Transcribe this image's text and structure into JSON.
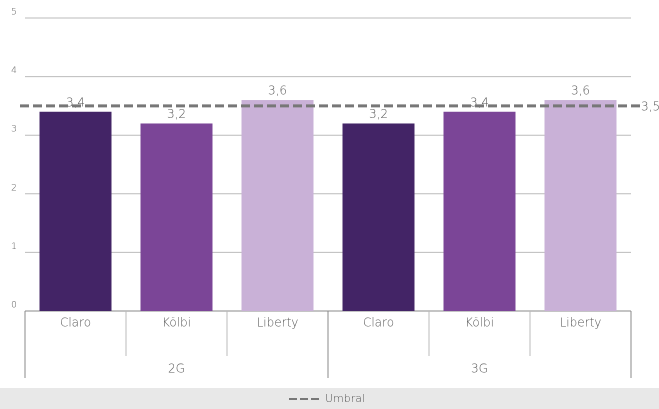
{
  "chart_data": {
    "type": "bar",
    "categories": [
      "Claro",
      "Kölbi",
      "Liberty"
    ],
    "colors": [
      "#432466",
      "#7b4597",
      "#c9b1d7"
    ],
    "series": [
      {
        "name": "2G",
        "values": [
          3.4,
          3.2,
          3.6
        ],
        "value_labels": [
          "3,4",
          "3,2",
          "3,6"
        ]
      },
      {
        "name": "3G",
        "values": [
          3.2,
          3.4,
          3.6
        ],
        "value_labels": [
          "3,2",
          "3,4",
          "3,6"
        ]
      }
    ],
    "reference_line": {
      "name": "Umbral",
      "value": 3.5,
      "label": "3,5",
      "color": "#777777"
    },
    "ylim": [
      0,
      5
    ],
    "yticks": [
      0,
      1,
      2,
      3,
      4,
      5
    ],
    "grid": true
  }
}
